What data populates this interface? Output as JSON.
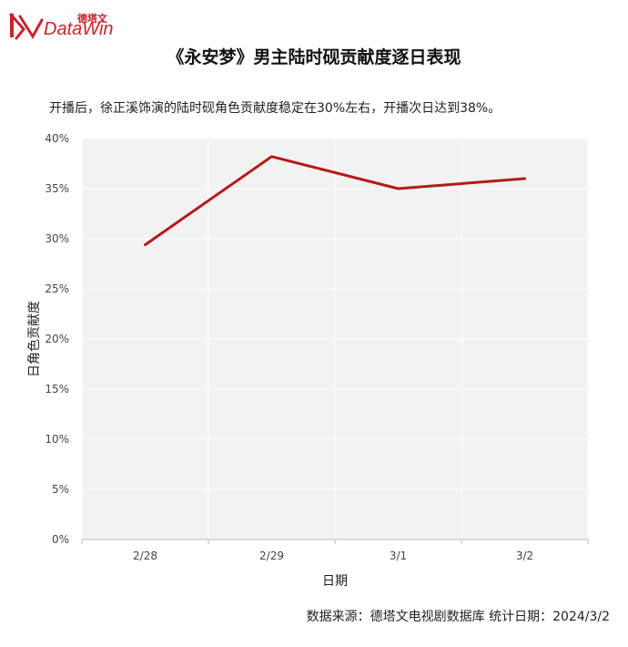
{
  "brand": {
    "cn": "德塔文",
    "en": "DataWin",
    "color": "#c8232b"
  },
  "title": "《永安梦》男主陆时砚贡献度逐日表现",
  "subtitle": "开播后，徐正溪饰演的陆时砚角色贡献度稳定在30%左右，开播次日达到38%。",
  "source": "数据来源：德塔文电视剧数据库   统计日期：2024/3/2",
  "chart_data": {
    "type": "line",
    "xlabel": "日期",
    "ylabel": "日角色贡献度",
    "categories": [
      "2/28",
      "2/29",
      "3/1",
      "3/2"
    ],
    "values": [
      29.4,
      38.2,
      35.0,
      36.0
    ],
    "ylim": [
      0,
      40
    ],
    "yticks": [
      0,
      5,
      10,
      15,
      20,
      25,
      30,
      35,
      40
    ],
    "ytick_labels": [
      "0%",
      "5%",
      "10%",
      "15%",
      "20%",
      "25%",
      "30%",
      "35%",
      "40%"
    ],
    "line_color": "#b51a1a",
    "plot_background": "#f2f2f2",
    "grid": true
  }
}
